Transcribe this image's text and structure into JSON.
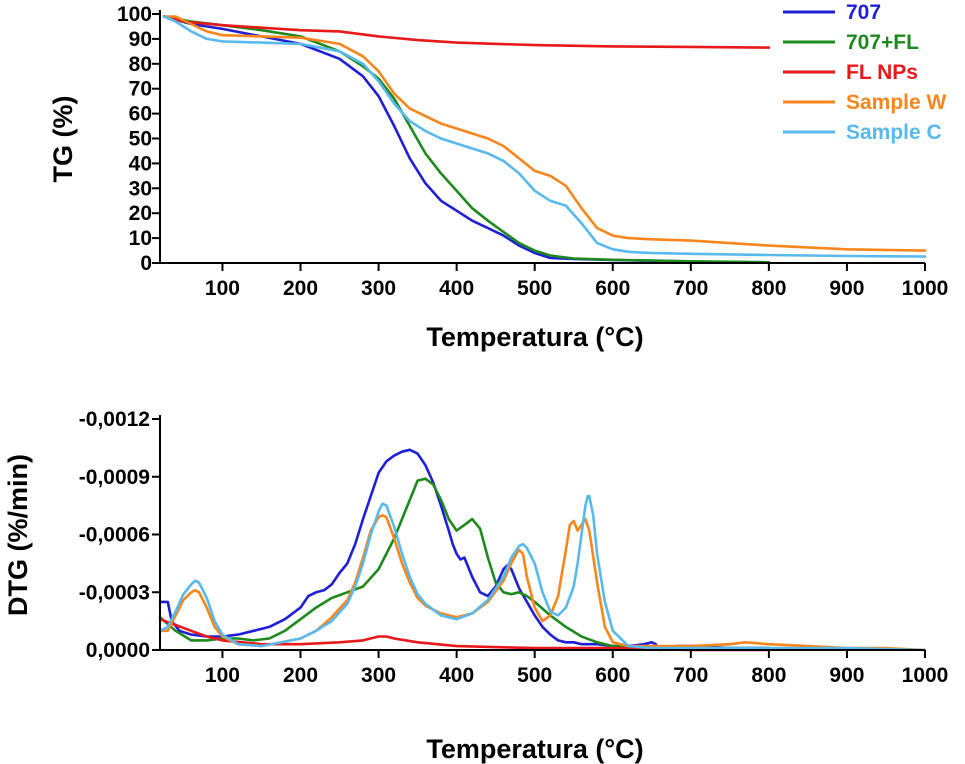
{
  "chart_data": [
    {
      "id": "tg",
      "type": "line",
      "xlabel": "Temperatura (°C)",
      "ylabel": "TG (%)",
      "xlim": [
        20,
        1000
      ],
      "ylim": [
        0,
        100
      ],
      "xticks": [
        100,
        200,
        300,
        400,
        500,
        600,
        700,
        800,
        900,
        1000
      ],
      "yticks": [
        0,
        10,
        20,
        30,
        40,
        50,
        60,
        70,
        80,
        90,
        100
      ],
      "legend_position": "top-right",
      "series": [
        {
          "name": "707",
          "color": "#1f1fd6",
          "x": [
            25,
            60,
            100,
            150,
            200,
            250,
            280,
            300,
            320,
            340,
            360,
            380,
            400,
            420,
            440,
            460,
            480,
            500,
            520,
            550,
            600,
            700,
            800
          ],
          "y": [
            99,
            96,
            94,
            91,
            88,
            82,
            75,
            67,
            55,
            42,
            32,
            25,
            21,
            17,
            14,
            11,
            7,
            4,
            2,
            1.6,
            1.2,
            0.6,
            0.2
          ]
        },
        {
          "name": "707+FL",
          "color": "#1e8a1e",
          "x": [
            25,
            60,
            100,
            150,
            200,
            250,
            280,
            300,
            320,
            340,
            360,
            380,
            400,
            420,
            440,
            460,
            480,
            500,
            520,
            550,
            600,
            700,
            800
          ],
          "y": [
            99,
            97,
            95.5,
            93.5,
            91,
            85,
            79,
            74,
            66,
            55,
            44,
            36,
            29,
            22,
            17,
            12.5,
            8,
            5,
            3,
            1.8,
            1.3,
            0.7,
            0.3
          ]
        },
        {
          "name": "FL NPs",
          "color": "#e8191b",
          "x": [
            25,
            50,
            100,
            150,
            200,
            250,
            300,
            350,
            400,
            500,
            600,
            700,
            800
          ],
          "y": [
            99,
            97,
            95.5,
            94.5,
            93.5,
            93,
            91,
            89.5,
            88.5,
            87.5,
            87,
            86.8,
            86.5
          ]
        },
        {
          "name": "Sample W",
          "color": "#f7861c",
          "x": [
            25,
            40,
            60,
            80,
            100,
            150,
            200,
            250,
            280,
            300,
            320,
            340,
            360,
            380,
            400,
            420,
            440,
            460,
            480,
            500,
            520,
            540,
            560,
            580,
            600,
            620,
            650,
            700,
            800,
            900,
            1000
          ],
          "y": [
            99,
            99,
            96,
            93,
            91.5,
            91,
            90.5,
            88,
            83,
            77,
            68,
            62,
            59,
            56,
            54,
            52,
            50,
            47,
            42,
            37,
            35,
            31,
            22,
            14,
            11,
            10,
            9.5,
            9,
            7,
            5.5,
            5
          ]
        },
        {
          "name": "Sample C",
          "color": "#58b9ec",
          "x": [
            25,
            40,
            60,
            80,
            100,
            150,
            200,
            250,
            280,
            300,
            320,
            340,
            360,
            380,
            400,
            420,
            440,
            460,
            480,
            500,
            520,
            540,
            560,
            580,
            600,
            620,
            650,
            700,
            800,
            900,
            1000
          ],
          "y": [
            99,
            97,
            93,
            90,
            89,
            88.5,
            88,
            85,
            80,
            73,
            64,
            57,
            53,
            50,
            48,
            46,
            44,
            41,
            36,
            29,
            25,
            23,
            16,
            8,
            5.5,
            4.5,
            4,
            3.7,
            3.2,
            2.8,
            2.6
          ]
        }
      ],
      "legend": [
        "707",
        "707+FL",
        "FL NPs",
        "Sample W",
        "Sample C"
      ]
    },
    {
      "id": "dtg",
      "type": "line",
      "xlabel": "Temperatura (°C)",
      "ylabel": "DTG (%/min)",
      "note": "y axis plotted inverted (more negative values upward)",
      "xlim": [
        20,
        1000
      ],
      "ylim": [
        0,
        -0.0012
      ],
      "xticks": [
        100,
        200,
        300,
        400,
        500,
        600,
        700,
        800,
        900,
        1000
      ],
      "yticks": [
        0,
        -0.0003,
        -0.0006,
        -0.0009,
        -0.0012
      ],
      "ytick_labels": [
        "0,0000",
        "-0,0003",
        "-0,0006",
        "-0,0009",
        "-0,0012"
      ],
      "series": [
        {
          "name": "707",
          "color": "#1f1fd6",
          "x": [
            20,
            30,
            35,
            45,
            60,
            80,
            100,
            120,
            140,
            160,
            180,
            200,
            210,
            220,
            230,
            240,
            250,
            260,
            270,
            280,
            290,
            300,
            310,
            320,
            330,
            340,
            350,
            360,
            370,
            380,
            390,
            395,
            400,
            405,
            410,
            420,
            430,
            440,
            450,
            460,
            465,
            470,
            480,
            490,
            500,
            510,
            520,
            530,
            540,
            550,
            560,
            570,
            580,
            600,
            620,
            640,
            650,
            655,
            660,
            680,
            700,
            750,
            800
          ],
          "y": [
            -0.00025,
            -0.00025,
            -0.00015,
            -0.0001,
            -8e-05,
            -7e-05,
            -7e-05,
            -8e-05,
            -0.0001,
            -0.00012,
            -0.00016,
            -0.00022,
            -0.00028,
            -0.0003,
            -0.00031,
            -0.00034,
            -0.0004,
            -0.00045,
            -0.00055,
            -0.00068,
            -0.0008,
            -0.00092,
            -0.00098,
            -0.00101,
            -0.00103,
            -0.00104,
            -0.00102,
            -0.00096,
            -0.00087,
            -0.00075,
            -0.00062,
            -0.00055,
            -0.0005,
            -0.00047,
            -0.00048,
            -0.00038,
            -0.0003,
            -0.00028,
            -0.00033,
            -0.00042,
            -0.00044,
            -0.00042,
            -0.00032,
            -0.00025,
            -0.00018,
            -0.00012,
            -8e-05,
            -5e-05,
            -4e-05,
            -4e-05,
            -3e-05,
            -3e-05,
            -3e-05,
            -2e-05,
            -2e-05,
            -3e-05,
            -4e-05,
            -3e-05,
            0,
            -2e-05,
            -2e-05,
            -1e-05,
            -1e-05
          ]
        },
        {
          "name": "707+FL",
          "color": "#1e8a1e",
          "x": [
            20,
            40,
            60,
            80,
            100,
            120,
            140,
            160,
            180,
            200,
            220,
            240,
            260,
            280,
            300,
            320,
            340,
            350,
            360,
            370,
            380,
            390,
            400,
            410,
            420,
            430,
            440,
            450,
            460,
            470,
            480,
            490,
            500,
            520,
            540,
            560,
            580,
            600,
            650,
            700,
            800
          ],
          "y": [
            -0.00017,
            -0.0001,
            -5e-05,
            -5e-05,
            -6e-05,
            -6e-05,
            -5e-05,
            -6e-05,
            -0.0001,
            -0.00016,
            -0.00022,
            -0.00027,
            -0.0003,
            -0.00033,
            -0.00042,
            -0.00058,
            -0.00078,
            -0.00088,
            -0.00089,
            -0.00086,
            -0.00078,
            -0.00068,
            -0.00062,
            -0.00065,
            -0.00068,
            -0.00063,
            -0.00048,
            -0.00035,
            -0.0003,
            -0.00029,
            -0.0003,
            -0.00028,
            -0.00025,
            -0.00018,
            -0.00012,
            -7e-05,
            -4e-05,
            -2e-05,
            -1e-05,
            -1e-05,
            -1e-05
          ]
        },
        {
          "name": "FL NPs",
          "color": "#e8191b",
          "x": [
            20,
            40,
            60,
            80,
            100,
            150,
            200,
            250,
            280,
            300,
            310,
            320,
            350,
            400,
            500,
            600,
            700,
            800
          ],
          "y": [
            -0.00016,
            -0.00013,
            -0.0001,
            -7e-05,
            -5e-05,
            -3e-05,
            -3e-05,
            -4e-05,
            -5e-05,
            -7e-05,
            -7e-05,
            -6e-05,
            -4e-05,
            -2e-05,
            -1e-05,
            -1e-05,
            0,
            0
          ]
        },
        {
          "name": "Sample W",
          "color": "#f7861c",
          "x": [
            20,
            30,
            40,
            50,
            60,
            65,
            70,
            80,
            90,
            100,
            120,
            150,
            200,
            220,
            240,
            260,
            270,
            280,
            290,
            300,
            305,
            310,
            320,
            330,
            340,
            350,
            360,
            380,
            400,
            420,
            440,
            460,
            470,
            478,
            480,
            485,
            490,
            500,
            510,
            520,
            530,
            540,
            545,
            550,
            555,
            560,
            565,
            570,
            580,
            590,
            600,
            620,
            650,
            700,
            750,
            770,
            800,
            850,
            900,
            950,
            1000
          ],
          "y": [
            -0.0001,
            -0.0001,
            -0.00018,
            -0.00026,
            -0.0003,
            -0.00031,
            -0.0003,
            -0.00022,
            -0.00012,
            -7e-05,
            -3e-05,
            -2e-05,
            -6e-05,
            -0.0001,
            -0.00017,
            -0.00026,
            -0.00035,
            -0.00048,
            -0.00062,
            -0.00069,
            -0.0007,
            -0.00069,
            -0.00058,
            -0.00045,
            -0.00035,
            -0.00027,
            -0.00023,
            -0.00019,
            -0.00017,
            -0.00019,
            -0.00025,
            -0.00036,
            -0.00045,
            -0.00051,
            -0.00052,
            -0.0005,
            -0.00038,
            -0.00022,
            -0.00015,
            -0.00018,
            -0.00028,
            -0.00052,
            -0.00065,
            -0.00067,
            -0.00062,
            -0.00065,
            -0.00068,
            -0.00062,
            -0.00035,
            -0.00012,
            -4e-05,
            -2e-05,
            -2e-05,
            -2e-05,
            -3e-05,
            -4e-05,
            -3e-05,
            -2e-05,
            -1e-05,
            -1e-05,
            0
          ]
        },
        {
          "name": "Sample C",
          "color": "#58b9ec",
          "x": [
            20,
            30,
            40,
            50,
            60,
            65,
            70,
            80,
            90,
            100,
            120,
            150,
            200,
            220,
            240,
            260,
            270,
            280,
            290,
            300,
            305,
            310,
            320,
            330,
            340,
            350,
            360,
            380,
            400,
            420,
            440,
            460,
            470,
            480,
            485,
            490,
            500,
            510,
            520,
            530,
            540,
            550,
            555,
            560,
            565,
            568,
            570,
            575,
            580,
            590,
            600,
            620,
            650,
            700,
            800,
            900,
            1000
          ],
          "y": [
            -0.0001,
            -0.00012,
            -0.0002,
            -0.00029,
            -0.00034,
            -0.00036,
            -0.00035,
            -0.00027,
            -0.00015,
            -8e-05,
            -3e-05,
            -2e-05,
            -6e-05,
            -0.0001,
            -0.00015,
            -0.00024,
            -0.00033,
            -0.00045,
            -0.0006,
            -0.00072,
            -0.00076,
            -0.00075,
            -0.00064,
            -0.0005,
            -0.00038,
            -0.00029,
            -0.00024,
            -0.00018,
            -0.00016,
            -0.00019,
            -0.00026,
            -0.00038,
            -0.00048,
            -0.00054,
            -0.00055,
            -0.00053,
            -0.00045,
            -0.0003,
            -0.0002,
            -0.00018,
            -0.00022,
            -0.00033,
            -0.00045,
            -0.0006,
            -0.00075,
            -0.0008,
            -0.0008,
            -0.0007,
            -0.0005,
            -0.00025,
            -0.0001,
            -2e-05,
            -1e-05,
            -1e-05,
            -1e-05,
            -1e-05,
            0
          ]
        }
      ]
    }
  ]
}
